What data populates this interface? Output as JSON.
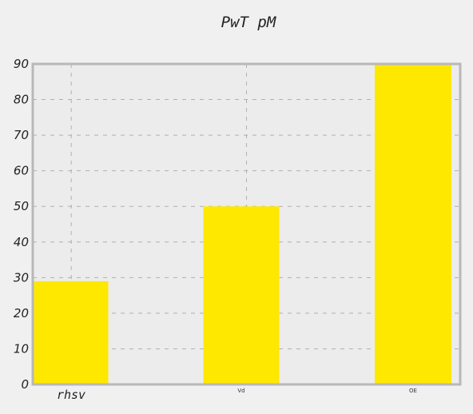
{
  "chart_data": {
    "type": "bar",
    "title": "PwT pM",
    "categories": [
      "rhsv",
      "Vd",
      "OE"
    ],
    "values": [
      29,
      50,
      90
    ],
    "xlabel": "",
    "ylabel": "",
    "ylim": [
      0,
      90
    ],
    "yticks": [
      0,
      10,
      20,
      30,
      40,
      50,
      60,
      70,
      80,
      90
    ],
    "grid": true,
    "legend": "none",
    "colors": {
      "bar": "#ffe800",
      "plot_background": "#ececec",
      "page_background": "#f0f0f0",
      "frame": "#b8b8b8",
      "grid": "#b0b0b0"
    }
  }
}
